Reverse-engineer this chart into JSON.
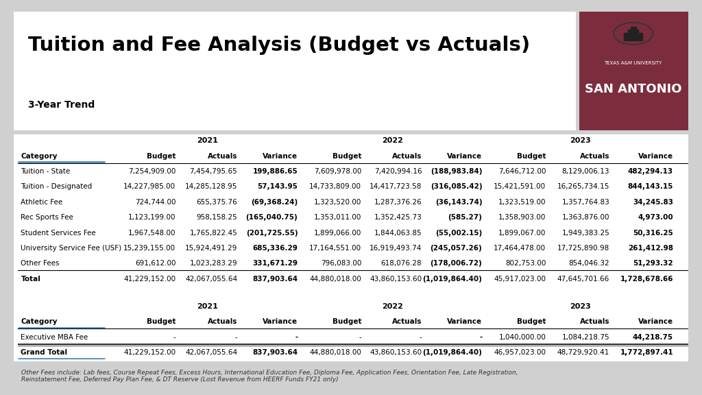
{
  "title": "Tuition and Fee Analysis (Budget vs Actuals)",
  "subtitle": "3-Year Trend",
  "bg_color": "#d0d0d0",
  "logo_bg": "#7b2d3e",
  "years": [
    "2021",
    "2022",
    "2023"
  ],
  "col_headers": [
    "Category",
    "Budget",
    "Actuals",
    "Variance",
    "Budget",
    "Actuals",
    "Variance",
    "Budget",
    "Actuals",
    "Variance"
  ],
  "main_rows": [
    [
      "Tuition - State",
      "7,254,909.00",
      "7,454,795.65",
      "199,886.65",
      "7,609,978.00",
      "7,420,994.16",
      "(188,983.84)",
      "7,646,712.00",
      "8,129,006.13",
      "482,294.13"
    ],
    [
      "Tuition - Designated",
      "14,227,985.00",
      "14,285,128.95",
      "57,143.95",
      "14,733,809.00",
      "14,417,723.58",
      "(316,085.42)",
      "15,421,591.00",
      "16,265,734.15",
      "844,143.15"
    ],
    [
      "Athletic Fee",
      "724,744.00",
      "655,375.76",
      "(69,368.24)",
      "1,323,520.00",
      "1,287,376.26",
      "(36,143.74)",
      "1,323,519.00",
      "1,357,764.83",
      "34,245.83"
    ],
    [
      "Rec Sports Fee",
      "1,123,199.00",
      "958,158.25",
      "(165,040.75)",
      "1,353,011.00",
      "1,352,425.73",
      "(585.27)",
      "1,358,903.00",
      "1,363,876.00",
      "4,973.00"
    ],
    [
      "Student Services Fee",
      "1,967,548.00",
      "1,765,822.45",
      "(201,725.55)",
      "1,899,066.00",
      "1,844,063.85",
      "(55,002.15)",
      "1,899,067.00",
      "1,949,383.25",
      "50,316.25"
    ],
    [
      "University Service Fee (USF)",
      "15,239,155.00",
      "15,924,491.29",
      "685,336.29",
      "17,164,551.00",
      "16,919,493.74",
      "(245,057.26)",
      "17,464,478.00",
      "17,725,890.98",
      "261,412.98"
    ],
    [
      "Other Fees",
      "691,612.00",
      "1,023,283.29",
      "331,671.29",
      "796,083.00",
      "618,076.28",
      "(178,006.72)",
      "802,753.00",
      "854,046.32",
      "51,293.32"
    ]
  ],
  "total_row": [
    "Total",
    "41,229,152.00",
    "42,067,055.64",
    "837,903.64",
    "44,880,018.00",
    "43,860,153.60",
    "(1,019,864.40)",
    "45,917,023.00",
    "47,645,701.66",
    "1,728,678.66"
  ],
  "second_rows": [
    [
      "Executive MBA Fee",
      "-",
      "-",
      "-",
      "-",
      "-",
      "-",
      "1,040,000.00",
      "1,084,218.75",
      "44,218.75"
    ]
  ],
  "grand_total_row": [
    "Grand Total",
    "41,229,152.00",
    "42,067,055.64",
    "837,903.64",
    "44,880,018.00",
    "43,860,153.60",
    "(1,019,864.40)",
    "46,957,023.00",
    "48,729,920.41",
    "1,772,897.41"
  ],
  "footnote": "Other Fees include: Lab fees, Course Repeat Fees, Excess Hours, International Education Fee, Diploma Fee, Application Fees, Orientation Fee, Late Registration,\nReinstatement Fee, Deferred Pay Plan Fee, & DT Reserve (Lost Revenue from HEERF Funds FY21 only)",
  "logo_text1": "TEXAS A&M UNIVERSITY",
  "logo_text2": "SAN ANTONIO"
}
